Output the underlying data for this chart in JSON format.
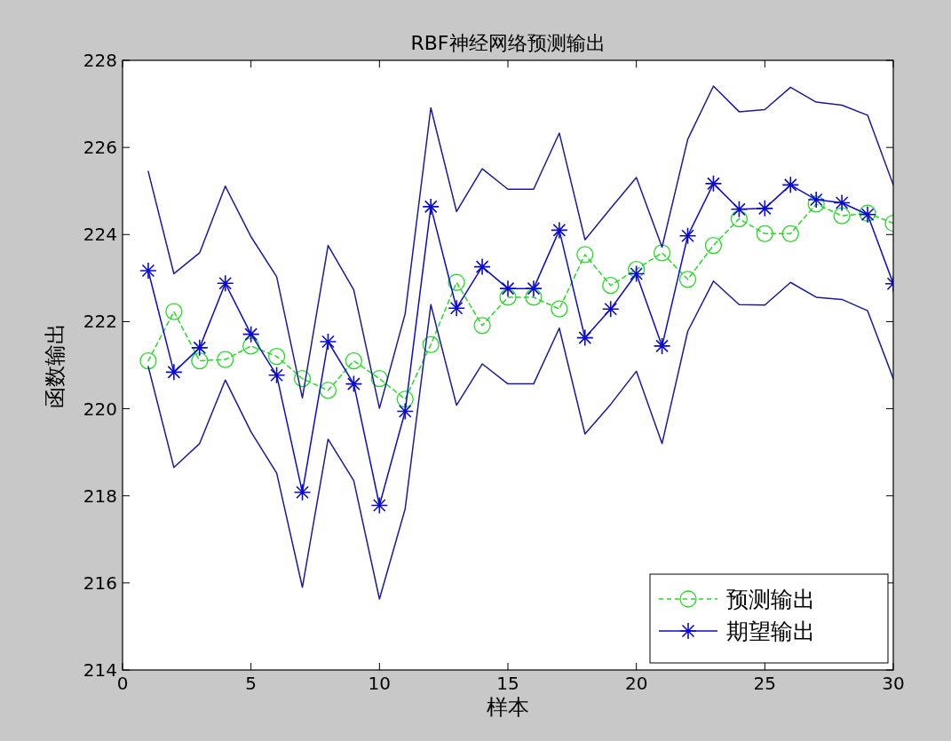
{
  "chart_data": {
    "type": "line",
    "title": "RBF神经网络预测输出",
    "xlabel": "样本",
    "ylabel": "函数输出",
    "x": [
      1,
      2,
      3,
      4,
      5,
      6,
      7,
      8,
      9,
      10,
      11,
      12,
      13,
      14,
      15,
      16,
      17,
      18,
      19,
      20,
      21,
      22,
      23,
      24,
      25,
      26,
      27,
      28,
      29,
      30
    ],
    "xlim": [
      0,
      30
    ],
    "xticks": [
      0,
      5,
      10,
      15,
      20,
      25,
      30
    ],
    "ylim": [
      214,
      228
    ],
    "yticks": [
      214,
      216,
      218,
      220,
      222,
      224,
      226,
      228
    ],
    "grid": false,
    "legend": "bottom right",
    "series": [
      {
        "name": "预测输出",
        "color": "#22dd22",
        "marker": "circle",
        "line_style": "dashed",
        "values": [
          221.1,
          222.23,
          221.1,
          221.13,
          221.44,
          221.2,
          220.69,
          220.42,
          221.1,
          220.69,
          220.22,
          221.47,
          222.9,
          221.91,
          222.56,
          222.56,
          222.29,
          223.54,
          222.83,
          223.2,
          223.58,
          222.97,
          223.75,
          224.36,
          224.02,
          224.02,
          224.7,
          224.43,
          224.49,
          224.26
        ]
      },
      {
        "name": "期望输出",
        "color": "#0a0ad0",
        "marker": "cross",
        "line_style": "solid",
        "values": [
          223.17,
          220.84,
          221.4,
          222.88,
          221.71,
          220.77,
          218.08,
          221.54,
          220.57,
          217.78,
          219.94,
          224.64,
          222.31,
          223.26,
          222.76,
          222.76,
          224.1,
          221.63,
          222.29,
          223.1,
          221.44,
          223.97,
          225.17,
          224.58,
          224.6,
          225.14,
          224.8,
          224.73,
          224.46,
          222.87
        ]
      },
      {
        "color": "#1a1aa0",
        "marker": "none",
        "line_style": "solid",
        "values": [
          225.45,
          223.1,
          223.58,
          225.11,
          223.95,
          223.03,
          220.25,
          223.75,
          222.73,
          220.01,
          222.18,
          226.91,
          224.53,
          225.51,
          225.04,
          225.04,
          226.33,
          223.88,
          224.6,
          225.31,
          223.71,
          226.19,
          227.41,
          226.82,
          226.87,
          227.38,
          227.04,
          226.97,
          226.74,
          225.14
        ]
      },
      {
        "color": "#1a1aa0",
        "marker": "none",
        "line_style": "solid",
        "values": [
          220.97,
          218.65,
          219.2,
          220.66,
          219.47,
          218.52,
          215.9,
          219.3,
          218.35,
          215.63,
          217.7,
          222.39,
          220.08,
          221.03,
          220.57,
          220.57,
          221.85,
          219.42,
          220.1,
          220.86,
          219.2,
          221.78,
          222.93,
          222.39,
          222.38,
          222.9,
          222.56,
          222.51,
          222.25,
          220.69
        ]
      }
    ]
  }
}
